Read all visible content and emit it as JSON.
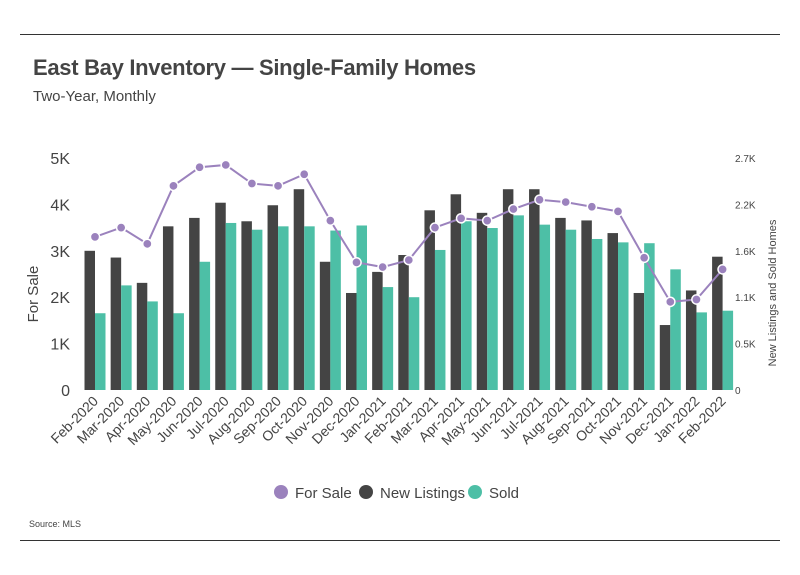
{
  "header": {
    "title": "East Bay Inventory — Single-Family Homes",
    "subtitle": "Two-Year, Monthly"
  },
  "footer": {
    "source": "Source:  MLS"
  },
  "colors": {
    "for_sale": "#9b82bd",
    "new_listings": "#444444",
    "sold": "#4dbfa6"
  },
  "chart_data": {
    "type": "bar",
    "title": "East Bay Inventory — Single-Family Homes",
    "subtitle": "Two-Year, Monthly",
    "categories": [
      "Feb-2020",
      "Mar-2020",
      "Apr-2020",
      "May-2020",
      "Jun-2020",
      "Jul-2020",
      "Aug-2020",
      "Sep-2020",
      "Oct-2020",
      "Nov-2020",
      "Dec-2020",
      "Jan-2021",
      "Feb-2021",
      "Mar-2021",
      "Apr-2021",
      "May-2021",
      "Jun-2021",
      "Jul-2021",
      "Aug-2021",
      "Sep-2021",
      "Oct-2021",
      "Nov-2021",
      "Dec-2021",
      "Jan-2022",
      "Feb-2022"
    ],
    "ylabel": "For Sale",
    "y2label": "New Listings and Sold Homes",
    "ylim": [
      0,
      5000
    ],
    "y2lim": [
      0,
      2750
    ],
    "yticks": [
      "0",
      "1K",
      "2K",
      "3K",
      "4K",
      "5K"
    ],
    "y2ticks": [
      "0",
      "0.5K",
      "1.1K",
      "1.6K",
      "2.2K",
      "2.7K"
    ],
    "legend_position": "bottom",
    "grid": false,
    "series": [
      {
        "name": "For Sale",
        "type": "line",
        "axis": "left",
        "values": [
          3300,
          3500,
          3150,
          4400,
          4800,
          4850,
          4450,
          4400,
          4650,
          3650,
          2750,
          2650,
          2800,
          3500,
          3700,
          3650,
          3900,
          4100,
          4050,
          3950,
          3850,
          2850,
          1900,
          1950,
          2600
        ]
      },
      {
        "name": "New Listings",
        "type": "bar",
        "axis": "right",
        "values": [
          1650,
          1570,
          1270,
          1940,
          2040,
          2220,
          2000,
          2190,
          2380,
          1520,
          1150,
          1400,
          1600,
          2130,
          2320,
          2100,
          2380,
          2380,
          2040,
          2010,
          1860,
          1150,
          770,
          1180,
          1580
        ]
      },
      {
        "name": "Sold",
        "type": "bar",
        "axis": "right",
        "values": [
          910,
          1240,
          1050,
          910,
          1520,
          1980,
          1900,
          1940,
          1940,
          1890,
          1950,
          1220,
          1100,
          1660,
          2000,
          1920,
          2070,
          1960,
          1900,
          1790,
          1750,
          1740,
          1430,
          920,
          940
        ]
      }
    ]
  }
}
